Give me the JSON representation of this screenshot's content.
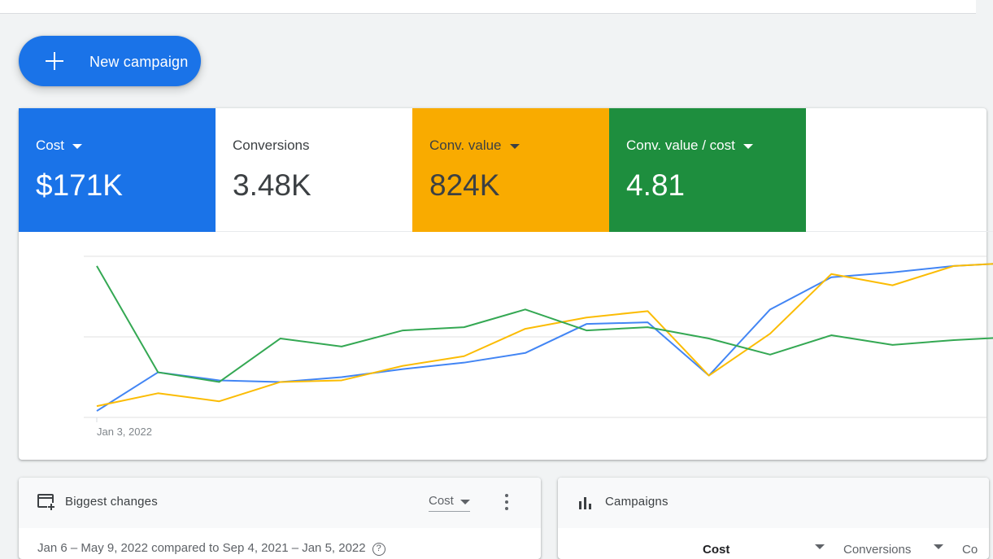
{
  "new_campaign": {
    "label": "New campaign",
    "icon": "plus-icon"
  },
  "metrics": [
    {
      "name": "Cost",
      "value": "$171K",
      "color": "#1a73e8",
      "has_menu": true
    },
    {
      "name": "Conversions",
      "value": "3.48K",
      "color": "#ffffff",
      "has_menu": false
    },
    {
      "name": "Conv. value",
      "value": "824K",
      "color": "#f9ab00",
      "has_menu": true
    },
    {
      "name": "Conv. value / cost",
      "value": "4.81",
      "color": "#1e8e3e",
      "has_menu": true
    }
  ],
  "chart_data": {
    "type": "line",
    "title": "",
    "xlabel": "",
    "ylabel": "",
    "x": [
      0,
      1,
      2,
      3,
      4,
      5,
      6,
      7,
      8,
      9,
      10,
      11,
      12,
      13,
      14,
      15
    ],
    "x_tick_labels": [
      {
        "index": 0,
        "label": "Jan 3, 2022"
      }
    ],
    "ylim": [
      0,
      100
    ],
    "grid": true,
    "series": [
      {
        "name": "Cost",
        "color": "#4285f4",
        "values": [
          4,
          28,
          23,
          22,
          25,
          30,
          34,
          40,
          58,
          59,
          26,
          67,
          87,
          90,
          94,
          96
        ]
      },
      {
        "name": "Conv. value",
        "color": "#fbbc04",
        "values": [
          7,
          15,
          10,
          22,
          23,
          32,
          38,
          55,
          62,
          66,
          26,
          52,
          89,
          82,
          94,
          96
        ]
      },
      {
        "name": "Conv. value / cost",
        "color": "#34a853",
        "values": [
          94,
          28,
          22,
          49,
          44,
          54,
          56,
          67,
          54,
          56,
          49,
          39,
          51,
          45,
          48,
          50
        ]
      }
    ]
  },
  "biggest_changes": {
    "title": "Biggest changes",
    "icon": "biggest-changes-icon",
    "metric_select": "Cost",
    "date_range": "Jan 6 – May 9, 2022 compared to Sep 4, 2021 – Jan 5, 2022"
  },
  "campaigns": {
    "title": "Campaigns",
    "icon": "bar-chart-icon",
    "columns": [
      "Cost",
      "Conversions",
      "Co"
    ]
  }
}
